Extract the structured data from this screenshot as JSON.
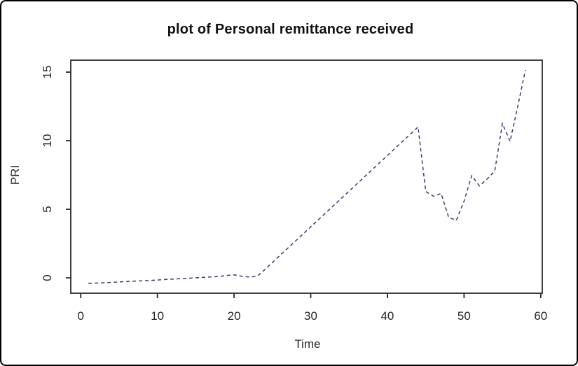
{
  "window": {
    "background": "#ffffff",
    "frame_border_color": "#000000",
    "axis_color": "#2b2b2b",
    "tick_label_color": "#26262e"
  },
  "chart_data": {
    "type": "line",
    "title": "plot of Personal remittance received",
    "xlabel": "Time",
    "ylabel": "PRI",
    "grid": false,
    "legend": false,
    "xlim": [
      -1.3,
      60.2
    ],
    "ylim": [
      -1.12,
      15.87
    ],
    "xticks": [
      0,
      10,
      20,
      30,
      40,
      50,
      60
    ],
    "yticks": [
      0,
      5,
      10,
      15
    ],
    "series": [
      {
        "name": "PRI",
        "color": "#3c3c6e",
        "style": "dashed",
        "x": [
          1,
          2,
          3,
          4,
          5,
          6,
          7,
          8,
          9,
          10,
          11,
          12,
          13,
          14,
          15,
          16,
          17,
          18,
          19,
          20,
          21,
          22,
          23,
          24,
          25,
          26,
          27,
          28,
          29,
          30,
          31,
          32,
          33,
          34,
          35,
          36,
          37,
          38,
          39,
          40,
          41,
          42,
          43,
          44,
          45,
          46,
          47,
          48,
          49,
          50,
          51,
          52,
          53,
          54,
          55,
          56,
          57,
          58
        ],
        "values": [
          -0.4,
          -0.38,
          -0.36,
          -0.33,
          -0.3,
          -0.27,
          -0.24,
          -0.21,
          -0.19,
          -0.16,
          -0.12,
          -0.09,
          -0.06,
          -0.03,
          0,
          0.04,
          0.07,
          0.1,
          0.17,
          0.22,
          0.12,
          0.06,
          0.12,
          0.6,
          1.12,
          1.64,
          2.16,
          2.68,
          3.2,
          3.72,
          4.24,
          4.76,
          5.28,
          5.8,
          6.32,
          6.84,
          7.36,
          7.88,
          8.4,
          8.92,
          9.44,
          9.96,
          10.48,
          11.0,
          6.3,
          5.95,
          6.15,
          4.4,
          4.2,
          5.6,
          7.45,
          6.7,
          7.2,
          7.8,
          11.25,
          9.95,
          12.5,
          15.15
        ]
      }
    ]
  }
}
